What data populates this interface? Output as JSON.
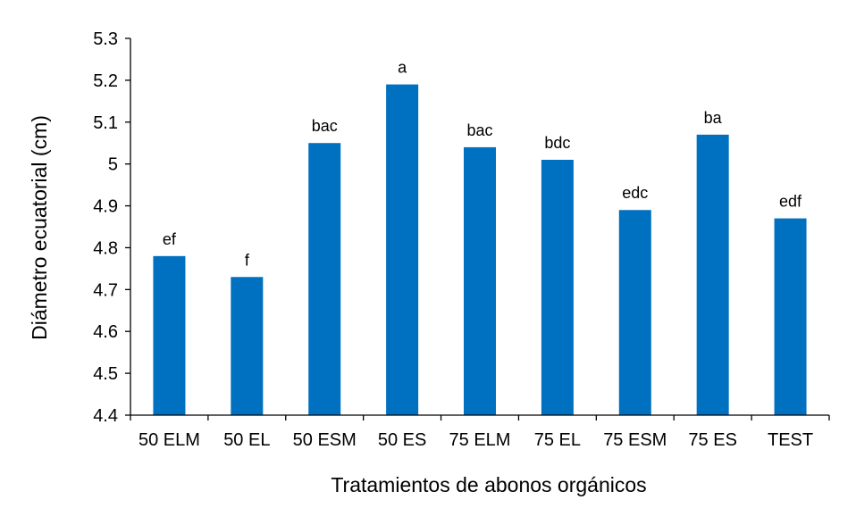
{
  "chart_data": {
    "type": "bar",
    "xlabel": "Tratamientos de abonos orgánicos",
    "ylabel": "Diámetro ecuatorial (cm)",
    "ylim": [
      4.4,
      5.3
    ],
    "yticks": [
      "4.4",
      "4.5",
      "4.6",
      "4.7",
      "4.8",
      "4.9",
      "5",
      "5.1",
      "5.2",
      "5.3"
    ],
    "grid": false,
    "bar_color": "#0070C0",
    "categories": [
      "50 ELM",
      "50 EL",
      "50 ESM",
      "50 ES",
      "75 ELM",
      "75 EL",
      "75 ESM",
      "75 ES",
      "TEST"
    ],
    "values": [
      4.78,
      4.73,
      5.05,
      5.19,
      5.04,
      5.01,
      4.89,
      5.07,
      4.87
    ],
    "labels": [
      "ef",
      "f",
      "bac",
      "a",
      "bac",
      "bdc",
      "edc",
      "ba",
      "edf"
    ]
  }
}
